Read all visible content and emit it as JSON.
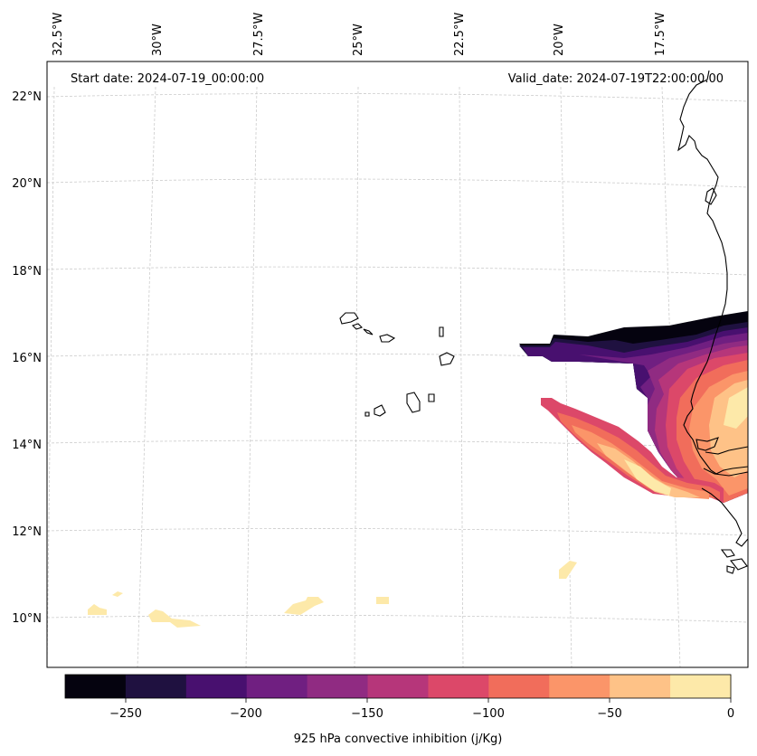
{
  "map": {
    "start_label": "Start date: 2024-07-19_00:00:00",
    "valid_label": "Valid_date: 2024-07-19T22:00:00.00",
    "lon_ticks": [
      "32.5°W",
      "30°W",
      "27.5°W",
      "25°W",
      "22.5°W",
      "20°W",
      "17.5°W"
    ],
    "lat_ticks": [
      "22°N",
      "20°N",
      "18°N",
      "16°N",
      "14°N",
      "12°N",
      "10°N"
    ],
    "colorbar": {
      "label": "925 hPa convective inhibition (j/Kg)",
      "tick_labels": [
        "−250",
        "−200",
        "−150",
        "−100",
        "−50",
        "0"
      ],
      "levels": [
        -275,
        -250,
        -225,
        -200,
        -175,
        -150,
        -125,
        -100,
        -75,
        -50,
        -25,
        0
      ],
      "colors": [
        "#05030f",
        "#1f1140",
        "#48106f",
        "#701f81",
        "#902b82",
        "#b6367a",
        "#dc4869",
        "#f16d5b",
        "#fb9569",
        "#fec287",
        "#fde9a9"
      ]
    }
  }
}
